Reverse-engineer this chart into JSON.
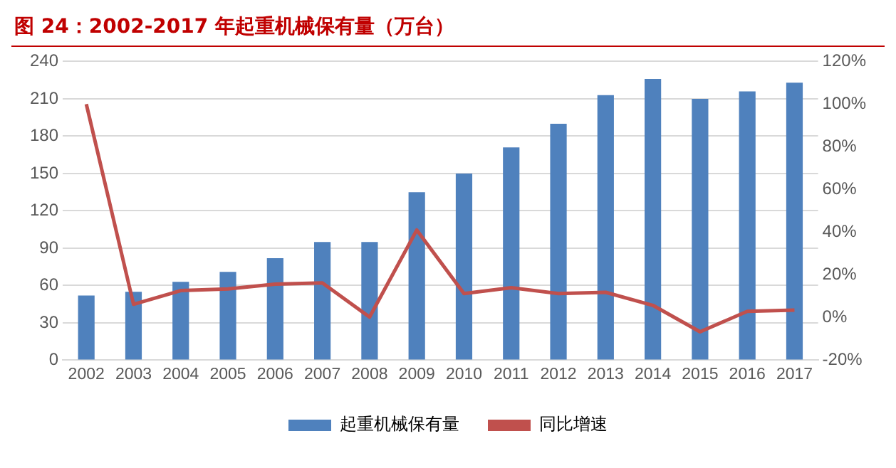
{
  "chart_data": {
    "type": "bar",
    "title": "图 24：2002-2017 年起重机械保有量（万台）",
    "categories": [
      "2002",
      "2003",
      "2004",
      "2005",
      "2006",
      "2007",
      "2008",
      "2009",
      "2010",
      "2011",
      "2012",
      "2013",
      "2014",
      "2015",
      "2016",
      "2017"
    ],
    "series": [
      {
        "name": "起重机械保有量",
        "color": "#4f81bd",
        "values": [
          52,
          55,
          63,
          71,
          82,
          95,
          95,
          135,
          150,
          171,
          190,
          213,
          226,
          210,
          216,
          223
        ]
      },
      {
        "name": "同比增速",
        "type": "line",
        "axis": "y2",
        "color": "#c0504d",
        "values": [
          100,
          6.2,
          12.6,
          13.4,
          15.6,
          16.2,
          0.2,
          41,
          11.2,
          14,
          11.2,
          11.8,
          5.7,
          -6.7,
          2.9,
          3.5
        ]
      }
    ],
    "ylim": [
      0,
      240
    ],
    "yticks": [
      0,
      30,
      60,
      90,
      120,
      150,
      180,
      210,
      240
    ],
    "y2lim": [
      -20,
      120
    ],
    "y2ticks": [
      {
        "value": -20,
        "label": "-20%"
      },
      {
        "value": 0,
        "label": "0%"
      },
      {
        "value": 20,
        "label": "20%"
      },
      {
        "value": 40,
        "label": "40%"
      },
      {
        "value": 60,
        "label": "60%"
      },
      {
        "value": 80,
        "label": "80%"
      },
      {
        "value": 100,
        "label": "100%"
      },
      {
        "value": 120,
        "label": "120%"
      }
    ],
    "grid": "y",
    "legend": "bottom",
    "marker": "none",
    "line_style": "solid"
  }
}
